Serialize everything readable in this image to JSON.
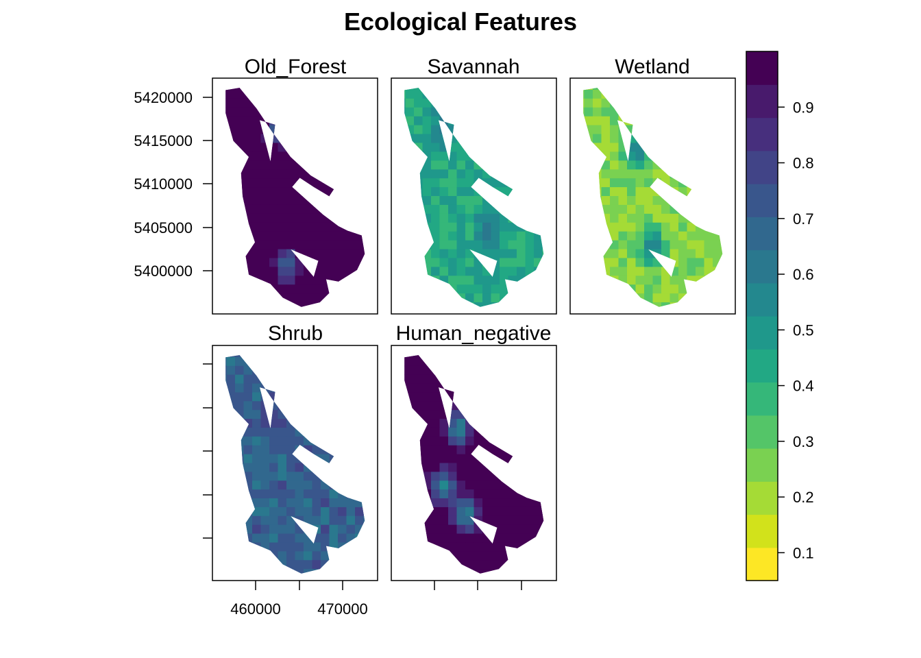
{
  "chart_data": {
    "type": "heatmap",
    "title": "Ecological Features",
    "panels": [
      {
        "name": "Old_Forest",
        "typical_value": 0.9,
        "low_zones": [
          [
            0.39,
            0.2
          ],
          [
            0.45,
            0.8
          ]
        ],
        "low_value": 0.55
      },
      {
        "name": "Savannah",
        "typical_value": 0.38,
        "low_zones": [
          [
            0.3,
            0.2
          ],
          [
            0.6,
            0.65
          ]
        ],
        "low_value": 0.55
      },
      {
        "name": "Wetland",
        "typical_value": 0.22,
        "low_zones": [
          [
            0.4,
            0.3
          ],
          [
            0.5,
            0.72
          ]
        ],
        "low_value": 0.55
      },
      {
        "name": "Shrub",
        "typical_value": 0.6,
        "low_zones": [
          [
            0.35,
            0.3
          ]
        ],
        "low_value": 0.72
      },
      {
        "name": "Human_negative",
        "typical_value": 0.86,
        "low_zones": [
          [
            0.4,
            0.35
          ],
          [
            0.45,
            0.72
          ],
          [
            0.3,
            0.6
          ]
        ],
        "low_value": 0.45
      }
    ],
    "x_ticks": [
      "460000",
      "470000"
    ],
    "y_ticks": [
      "5420000",
      "5415000",
      "5410000",
      "5405000",
      "5400000"
    ],
    "colorbar": {
      "ticks": [
        "0.9",
        "0.8",
        "0.7",
        "0.6",
        "0.5",
        "0.4",
        "0.3",
        "0.2",
        "0.1"
      ],
      "range": [
        0.05,
        1.0
      ],
      "step": 0.05,
      "colors": [
        "#fde725",
        "#d2e21b",
        "#a5db36",
        "#7ad151",
        "#54c568",
        "#35b779",
        "#22a884",
        "#1f988b",
        "#23888e",
        "#2a788e",
        "#31688e",
        "#39568c",
        "#414487",
        "#472f7d",
        "#481a6c",
        "#440154"
      ]
    }
  }
}
